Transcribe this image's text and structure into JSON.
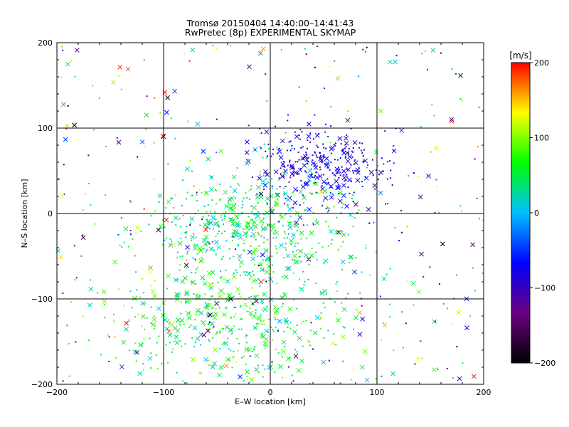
{
  "chart_data": {
    "type": "scatter",
    "title": "Tromsø 20150404  14:40:00–14:41:43",
    "subtitle": "RwPretec (8p) EXPERIMENTAL SKYMAP",
    "xlabel": "E–W location [km]",
    "ylabel": "N–S location [km]",
    "xlim": [
      -200,
      200
    ],
    "ylim": [
      -200,
      200
    ],
    "xticks": [
      "−200",
      "−100",
      "0",
      "100",
      "200"
    ],
    "yticks": [
      "−200",
      "−100",
      "0",
      "100",
      "200"
    ],
    "grid": true,
    "marker_styles": [
      "dot",
      "cross"
    ],
    "colorbar": {
      "label": "[m/s]",
      "range": [
        -200,
        200
      ],
      "ticks": [
        "200",
        "100",
        "0",
        "−100",
        "−200"
      ],
      "colormap": "rainbow (black → purple → blue → cyan → green → yellow → red)",
      "stops": [
        "#000000",
        "#6a0080",
        "#0000ff",
        "#00bfff",
        "#00ff00",
        "#ffff00",
        "#ff0000"
      ]
    },
    "clusters": [
      {
        "name": "north-east-negative",
        "center_x": 45,
        "center_y": 55,
        "spread": 28,
        "velocity_range": [
          -110,
          -50
        ]
      },
      {
        "name": "center-positive",
        "center_x": -20,
        "center_y": -20,
        "spread": 45,
        "velocity_range": [
          -10,
          90
        ]
      },
      {
        "name": "south-positive",
        "center_x": -40,
        "center_y": -130,
        "spread": 55,
        "velocity_range": [
          0,
          110
        ]
      },
      {
        "name": "scattered-background",
        "x_range": [
          -200,
          200
        ],
        "y_range": [
          -200,
          200
        ],
        "velocity_range": [
          -200,
          200
        ]
      }
    ]
  }
}
